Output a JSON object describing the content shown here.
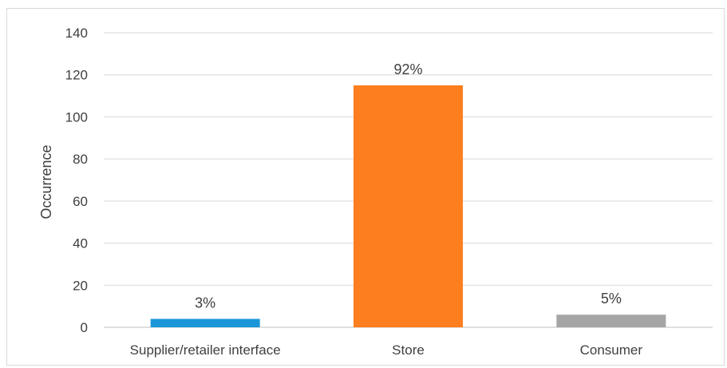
{
  "chart_data": {
    "type": "bar",
    "title": "",
    "xlabel": "",
    "ylabel": "Occurrence",
    "ylim": [
      0,
      140
    ],
    "yticks": [
      0,
      20,
      40,
      60,
      80,
      100,
      120,
      140
    ],
    "grid": true,
    "legend": "none",
    "categories": [
      "Supplier/retailer interface",
      "Store",
      "Consumer"
    ],
    "values": [
      4,
      115,
      6
    ],
    "data_labels": [
      "3%",
      "92%",
      "5%"
    ],
    "colors": [
      "#1a96d8",
      "#fd7e1f",
      "#a5a5a5"
    ],
    "gridline_color": "#d9d9d9",
    "text_color": "#404040"
  }
}
